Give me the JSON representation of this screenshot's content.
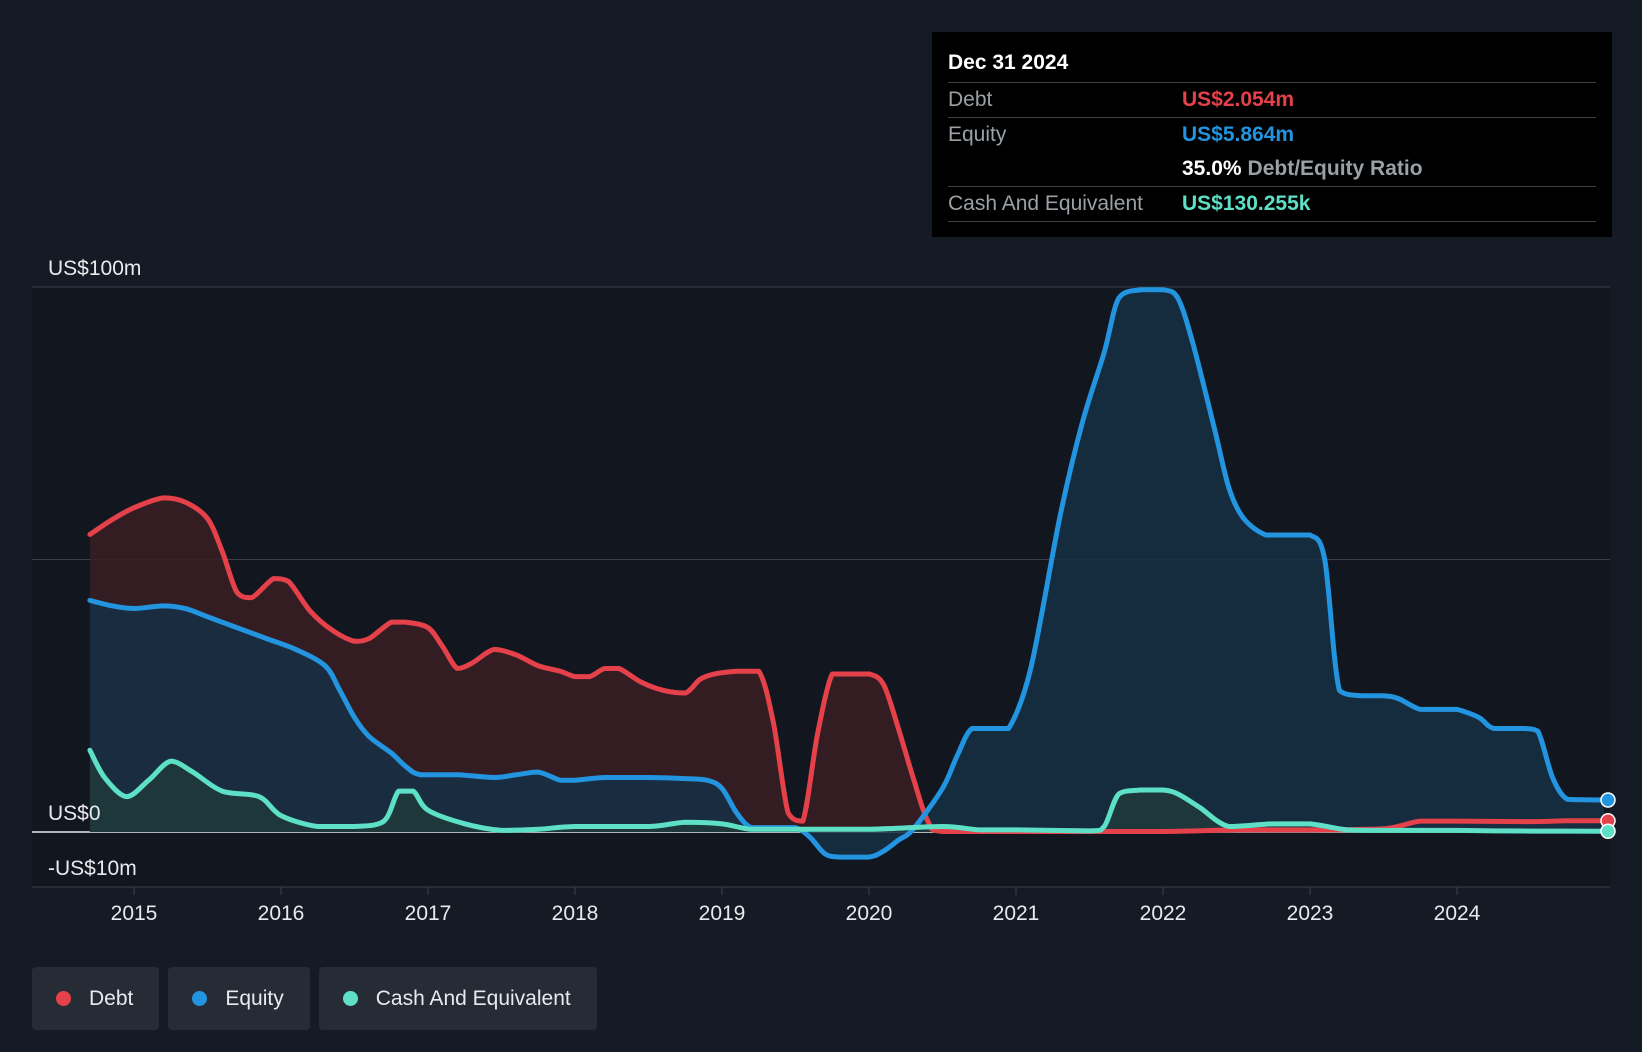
{
  "chart_data": {
    "type": "area",
    "y_axis": {
      "labels": [
        "US$100m",
        "US$0",
        "-US$10m"
      ],
      "ylim": [
        -10,
        100
      ],
      "gridlines": [
        100,
        50,
        0,
        -10
      ]
    },
    "x_axis": {
      "tick_labels": [
        "2015",
        "2016",
        "2017",
        "2018",
        "2019",
        "2020",
        "2021",
        "2022",
        "2023",
        "2024"
      ],
      "xlim": [
        2014.7,
        2025.0
      ]
    },
    "series": [
      {
        "name": "Debt",
        "color": "#e5414a",
        "fill": "#3a1e24",
        "points": [
          [
            2014.7,
            54.6
          ],
          [
            2014.85,
            57.3
          ],
          [
            2015.0,
            59.5
          ],
          [
            2015.2,
            61.3
          ],
          [
            2015.35,
            60.5
          ],
          [
            2015.5,
            57.5
          ],
          [
            2015.6,
            51.5
          ],
          [
            2015.7,
            44.0
          ],
          [
            2015.8,
            43.0
          ],
          [
            2015.95,
            46.5
          ],
          [
            2016.05,
            46.0
          ],
          [
            2016.2,
            40.5
          ],
          [
            2016.35,
            37.0
          ],
          [
            2016.5,
            35.0
          ],
          [
            2016.6,
            35.5
          ],
          [
            2016.75,
            38.5
          ],
          [
            2016.85,
            38.5
          ],
          [
            2017.0,
            37.5
          ],
          [
            2017.1,
            34.0
          ],
          [
            2017.2,
            30.0
          ],
          [
            2017.3,
            31.0
          ],
          [
            2017.45,
            33.5
          ],
          [
            2017.6,
            32.5
          ],
          [
            2017.75,
            30.5
          ],
          [
            2017.9,
            29.5
          ],
          [
            2018.0,
            28.5
          ],
          [
            2018.1,
            28.5
          ],
          [
            2018.2,
            30.0
          ],
          [
            2018.3,
            30.0
          ],
          [
            2018.45,
            27.5
          ],
          [
            2018.6,
            26.0
          ],
          [
            2018.75,
            25.5
          ],
          [
            2018.85,
            28.0
          ],
          [
            2018.95,
            29.0
          ],
          [
            2019.1,
            29.5
          ],
          [
            2019.25,
            29.5
          ],
          [
            2019.35,
            20.0
          ],
          [
            2019.45,
            3.5
          ],
          [
            2019.55,
            2.0
          ],
          [
            2019.65,
            18.0
          ],
          [
            2019.75,
            29.0
          ],
          [
            2019.85,
            29.0
          ],
          [
            2020.0,
            29.0
          ],
          [
            2020.1,
            27.0
          ],
          [
            2020.2,
            19.0
          ],
          [
            2020.3,
            10.0
          ],
          [
            2020.4,
            2.0
          ],
          [
            2020.5,
            0.1
          ],
          [
            2021.0,
            0.1
          ],
          [
            2022.0,
            0.1
          ],
          [
            2022.5,
            0.4
          ],
          [
            2023.0,
            0.4
          ],
          [
            2023.5,
            0.6
          ],
          [
            2023.75,
            2.0
          ],
          [
            2024.0,
            2.0
          ],
          [
            2024.5,
            1.9
          ],
          [
            2024.75,
            2.054
          ],
          [
            2025.0,
            2.054
          ]
        ]
      },
      {
        "name": "Equity",
        "color": "#2394df",
        "fill": "#162f44",
        "points": [
          [
            2014.7,
            42.5
          ],
          [
            2014.85,
            41.5
          ],
          [
            2015.0,
            41.0
          ],
          [
            2015.2,
            41.5
          ],
          [
            2015.35,
            41.0
          ],
          [
            2015.5,
            39.5
          ],
          [
            2015.7,
            37.5
          ],
          [
            2015.9,
            35.5
          ],
          [
            2016.1,
            33.5
          ],
          [
            2016.3,
            30.5
          ],
          [
            2016.4,
            26.0
          ],
          [
            2016.5,
            21.0
          ],
          [
            2016.6,
            17.5
          ],
          [
            2016.75,
            14.5
          ],
          [
            2016.85,
            12.0
          ],
          [
            2016.95,
            10.5
          ],
          [
            2017.2,
            10.5
          ],
          [
            2017.45,
            10.0
          ],
          [
            2017.6,
            10.5
          ],
          [
            2017.75,
            11.0
          ],
          [
            2017.9,
            9.5
          ],
          [
            2018.0,
            9.5
          ],
          [
            2018.2,
            10.0
          ],
          [
            2018.5,
            10.0
          ],
          [
            2018.75,
            9.8
          ],
          [
            2018.9,
            9.5
          ],
          [
            2019.0,
            8.0
          ],
          [
            2019.1,
            3.5
          ],
          [
            2019.2,
            0.8
          ],
          [
            2019.35,
            0.8
          ],
          [
            2019.5,
            0.8
          ],
          [
            2019.6,
            -1.0
          ],
          [
            2019.7,
            -4.0
          ],
          [
            2019.8,
            -4.6
          ],
          [
            2020.0,
            -4.6
          ],
          [
            2020.1,
            -3.5
          ],
          [
            2020.2,
            -1.5
          ],
          [
            2020.3,
            0.5
          ],
          [
            2020.5,
            8.0
          ],
          [
            2020.6,
            14.0
          ],
          [
            2020.7,
            19.0
          ],
          [
            2020.85,
            19.0
          ],
          [
            2020.95,
            19.0
          ],
          [
            2021.1,
            30.0
          ],
          [
            2021.3,
            58.0
          ],
          [
            2021.45,
            75.0
          ],
          [
            2021.6,
            88.0
          ],
          [
            2021.7,
            98.0
          ],
          [
            2021.85,
            99.5
          ],
          [
            2022.0,
            99.5
          ],
          [
            2022.1,
            98.0
          ],
          [
            2022.2,
            90.0
          ],
          [
            2022.35,
            74.0
          ],
          [
            2022.45,
            63.0
          ],
          [
            2022.55,
            57.5
          ],
          [
            2022.7,
            54.5
          ],
          [
            2022.85,
            54.5
          ],
          [
            2023.0,
            54.5
          ],
          [
            2023.1,
            50.0
          ],
          [
            2023.2,
            26.0
          ],
          [
            2023.35,
            25.0
          ],
          [
            2023.5,
            25.0
          ],
          [
            2023.6,
            24.5
          ],
          [
            2023.75,
            22.5
          ],
          [
            2023.9,
            22.5
          ],
          [
            2024.0,
            22.5
          ],
          [
            2024.15,
            21.0
          ],
          [
            2024.25,
            19.0
          ],
          [
            2024.45,
            19.0
          ],
          [
            2024.55,
            18.5
          ],
          [
            2024.65,
            10.0
          ],
          [
            2024.75,
            6.0
          ],
          [
            2024.9,
            5.9
          ],
          [
            2025.0,
            5.864
          ]
        ]
      },
      {
        "name": "Cash And Equivalent",
        "color": "#5de0c6",
        "fill": "#1f3a3b",
        "points": [
          [
            2014.7,
            15.0
          ],
          [
            2014.8,
            10.0
          ],
          [
            2014.95,
            6.5
          ],
          [
            2015.1,
            9.5
          ],
          [
            2015.25,
            13.0
          ],
          [
            2015.4,
            11.0
          ],
          [
            2015.6,
            7.5
          ],
          [
            2015.85,
            6.5
          ],
          [
            2016.0,
            3.0
          ],
          [
            2016.25,
            1.0
          ],
          [
            2016.5,
            1.0
          ],
          [
            2016.7,
            2.0
          ],
          [
            2016.8,
            7.5
          ],
          [
            2016.9,
            7.5
          ],
          [
            2017.0,
            4.0
          ],
          [
            2017.25,
            1.5
          ],
          [
            2017.5,
            0.3
          ],
          [
            2017.75,
            0.5
          ],
          [
            2018.0,
            1.0
          ],
          [
            2018.5,
            1.0
          ],
          [
            2018.75,
            1.8
          ],
          [
            2019.0,
            1.5
          ],
          [
            2019.2,
            0.5
          ],
          [
            2019.5,
            0.5
          ],
          [
            2020.0,
            0.5
          ],
          [
            2020.5,
            1.0
          ],
          [
            2020.75,
            0.4
          ],
          [
            2021.0,
            0.4
          ],
          [
            2021.5,
            0.2
          ],
          [
            2021.6,
            1.0
          ],
          [
            2021.7,
            7.0
          ],
          [
            2021.85,
            7.7
          ],
          [
            2022.0,
            7.7
          ],
          [
            2022.1,
            7.0
          ],
          [
            2022.25,
            4.5
          ],
          [
            2022.45,
            1.0
          ],
          [
            2022.75,
            1.5
          ],
          [
            2023.0,
            1.5
          ],
          [
            2023.25,
            0.4
          ],
          [
            2023.5,
            0.3
          ],
          [
            2024.0,
            0.3
          ],
          [
            2024.25,
            0.2
          ],
          [
            2024.75,
            0.15
          ],
          [
            2025.0,
            0.13
          ]
        ]
      }
    ],
    "tooltip": {
      "date": "Dec 31 2024",
      "debt_label": "Debt",
      "debt_value": "US$2.054m",
      "equity_label": "Equity",
      "equity_value": "US$5.864m",
      "ratio_value": "35.0%",
      "ratio_label": "Debt/Equity Ratio",
      "cash_label": "Cash And Equivalent",
      "cash_value": "US$130.255k"
    },
    "legend": [
      {
        "label": "Debt",
        "color": "#e5414a"
      },
      {
        "label": "Equity",
        "color": "#2394df"
      },
      {
        "label": "Cash And Equivalent",
        "color": "#5de0c6"
      }
    ],
    "grid": true,
    "legend_position": "bottom-left"
  }
}
